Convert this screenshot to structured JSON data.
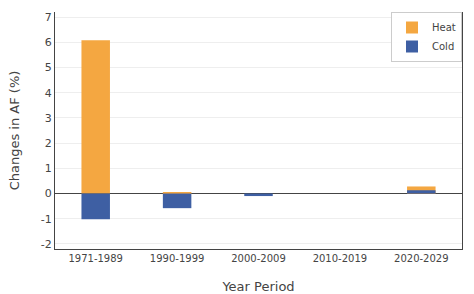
{
  "chart_data": {
    "type": "bar",
    "categories": [
      "1971-1989",
      "1990-1999",
      "2000-2009",
      "2010-2019",
      "2020-2029"
    ],
    "series": [
      {
        "name": "Heat",
        "color": "#F4A741",
        "values": [
          6.08,
          0.05,
          0.0,
          0.0,
          0.28
        ]
      },
      {
        "name": "Cold",
        "color": "#3E5FA3",
        "values": [
          -1.02,
          -0.58,
          -0.1,
          0.0,
          0.13
        ]
      }
    ],
    "xlabel": "Year Period",
    "ylabel": "Changes in AF (%)",
    "ylim": [
      -2.2,
      7.2
    ],
    "yticks": [
      -2,
      -1,
      0,
      1,
      2,
      3,
      4,
      5,
      6,
      7
    ],
    "grid": true,
    "legend": "upper right"
  }
}
